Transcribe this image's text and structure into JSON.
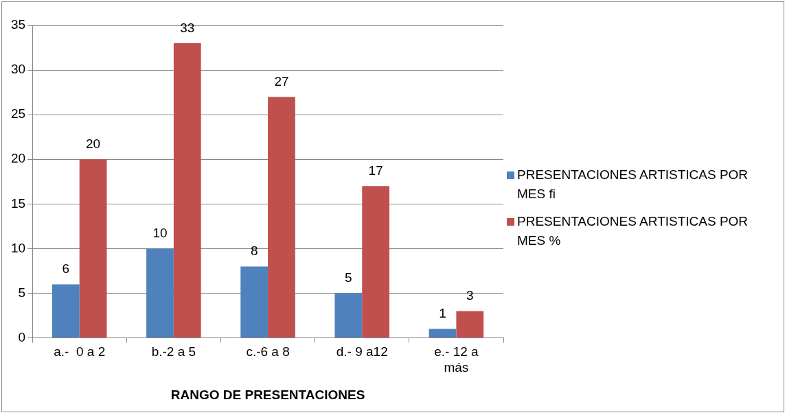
{
  "chart_data": {
    "type": "bar",
    "xlabel": "RANGO DE PRESENTACIONES",
    "categories": [
      "a.-  0 a 2",
      "b.-2 a 5",
      "c.-6 a 8",
      "d.- 9 a12",
      "e.- 12 a más"
    ],
    "series": [
      {
        "name": "PRESENTACIONES ARTISTICAS POR MES fi",
        "color": "#4f81bd",
        "values": [
          6,
          10,
          8,
          5,
          1
        ]
      },
      {
        "name": "PRESENTACIONES ARTISTICAS POR MES %",
        "color": "#c0504d",
        "values": [
          20,
          33,
          27,
          17,
          3
        ]
      }
    ],
    "ylim": [
      0,
      35
    ],
    "yticks": [
      0,
      5,
      10,
      15,
      20,
      25,
      30,
      35
    ],
    "grid": "y",
    "legend": "right",
    "data_labels": true
  }
}
